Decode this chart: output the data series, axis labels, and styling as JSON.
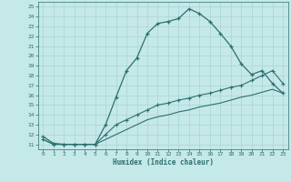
{
  "xlabel": "Humidex (Indice chaleur)",
  "bg_color": "#c5e8e8",
  "grid_color": "#aad4d4",
  "line_color": "#2d7070",
  "xlim": [
    -0.5,
    23.5
  ],
  "ylim": [
    10.5,
    25.5
  ],
  "xticks": [
    0,
    1,
    2,
    3,
    4,
    5,
    6,
    7,
    8,
    9,
    10,
    11,
    12,
    13,
    14,
    15,
    16,
    17,
    18,
    19,
    20,
    21,
    22,
    23
  ],
  "yticks": [
    11,
    12,
    13,
    14,
    15,
    16,
    17,
    18,
    19,
    20,
    21,
    22,
    23,
    24,
    25
  ],
  "line1_x": [
    0,
    1,
    2,
    3,
    4,
    5,
    6,
    7,
    8,
    9,
    10,
    11,
    12,
    13,
    14,
    15,
    16,
    17,
    18,
    19,
    20,
    21,
    22,
    23
  ],
  "line1_y": [
    11.8,
    11.1,
    11.0,
    11.0,
    11.0,
    11.0,
    13.0,
    15.8,
    18.5,
    19.8,
    22.3,
    23.3,
    23.5,
    23.8,
    24.8,
    24.3,
    23.5,
    22.3,
    21.0,
    19.2,
    18.1,
    18.5,
    17.2,
    16.2
  ],
  "line1_markers": [
    0,
    1,
    2,
    3,
    4,
    5,
    6,
    7,
    8,
    9,
    10,
    11,
    12,
    13,
    14,
    15,
    16,
    17,
    18,
    19,
    20,
    21,
    22,
    23
  ],
  "line2_x": [
    0,
    1,
    2,
    3,
    4,
    5,
    6,
    7,
    8,
    9,
    10,
    11,
    12,
    13,
    14,
    15,
    16,
    17,
    18,
    19,
    20,
    21,
    22,
    23
  ],
  "line2_y": [
    11.5,
    11.0,
    11.0,
    11.0,
    11.0,
    11.0,
    12.0,
    13.0,
    13.5,
    14.0,
    14.5,
    15.0,
    15.2,
    15.5,
    15.7,
    16.0,
    16.2,
    16.5,
    16.8,
    17.0,
    17.5,
    18.0,
    18.5,
    17.2
  ],
  "line2_markers": [
    0,
    1,
    2,
    3,
    4,
    5
  ],
  "line3_x": [
    0,
    1,
    2,
    3,
    4,
    5,
    6,
    7,
    8,
    9,
    10,
    11,
    12,
    13,
    14,
    15,
    16,
    17,
    18,
    19,
    20,
    21,
    22,
    23
  ],
  "line3_y": [
    11.5,
    11.0,
    11.0,
    11.0,
    11.0,
    11.0,
    11.5,
    12.0,
    12.5,
    13.0,
    13.5,
    13.8,
    14.0,
    14.3,
    14.5,
    14.8,
    15.0,
    15.2,
    15.5,
    15.8,
    16.0,
    16.3,
    16.6,
    16.2
  ],
  "line3_markers": []
}
